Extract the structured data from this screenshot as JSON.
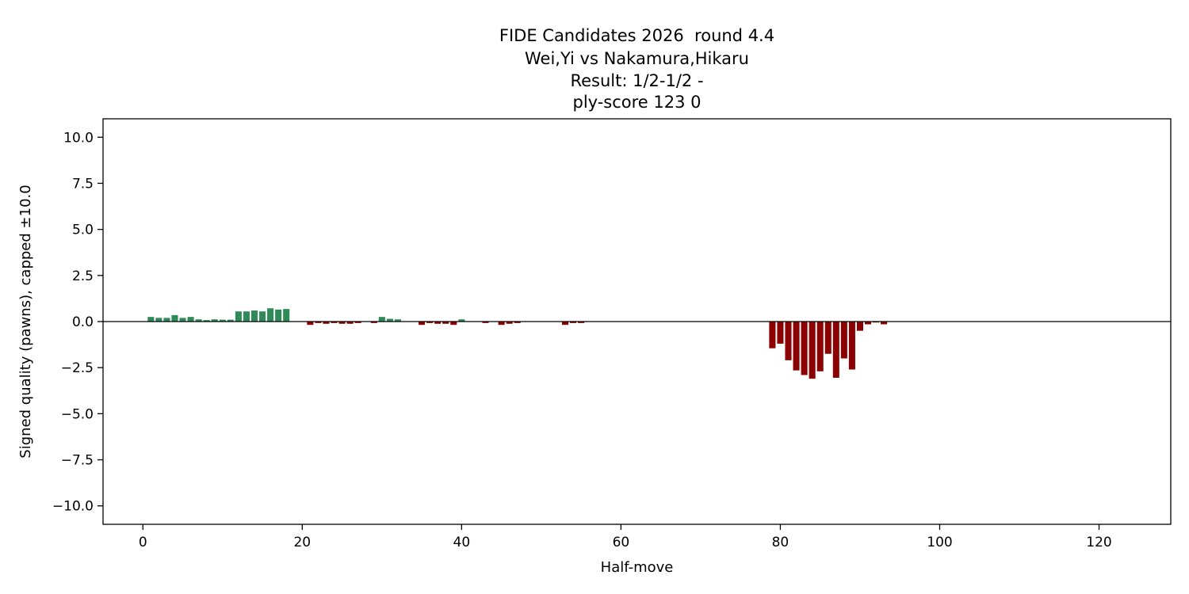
{
  "chart_data": {
    "type": "bar",
    "title_lines": [
      "FIDE Candidates 2026  round 4.4",
      "Wei,Yi vs Nakamura,Hikaru",
      "Result: 1/2-1/2 -",
      "ply-score 123 0"
    ],
    "xlabel": "Half-move",
    "ylabel": "Signed quality (pawns), capped ±10.0",
    "xlim": [
      -5,
      129
    ],
    "ylim": [
      -11,
      11
    ],
    "xticks": [
      0,
      20,
      40,
      60,
      80,
      100,
      120
    ],
    "xtick_labels": [
      "0",
      "20",
      "40",
      "60",
      "80",
      "100",
      "120"
    ],
    "yticks": [
      10,
      7.5,
      5,
      2.5,
      0,
      -2.5,
      -5,
      -7.5,
      -10
    ],
    "ytick_labels": [
      "10.0",
      "7.5",
      "5.0",
      "2.5",
      "0.0",
      "−2.5",
      "−5.0",
      "−7.5",
      "−10.0"
    ],
    "grid": false,
    "colors": {
      "positive": "#2e8b57",
      "negative": "#8b0000",
      "zero_line": "#000000",
      "axes": "#000000"
    },
    "x": [
      1,
      2,
      3,
      4,
      5,
      6,
      7,
      8,
      9,
      10,
      11,
      12,
      13,
      14,
      15,
      16,
      17,
      18,
      19,
      20,
      21,
      22,
      23,
      24,
      25,
      26,
      27,
      28,
      29,
      30,
      31,
      32,
      33,
      34,
      35,
      36,
      37,
      38,
      39,
      40,
      41,
      42,
      43,
      44,
      45,
      46,
      47,
      48,
      49,
      50,
      51,
      52,
      53,
      54,
      55,
      56,
      57,
      58,
      59,
      60,
      61,
      62,
      63,
      64,
      65,
      66,
      67,
      68,
      69,
      70,
      71,
      72,
      73,
      74,
      75,
      76,
      77,
      78,
      79,
      80,
      81,
      82,
      83,
      84,
      85,
      86,
      87,
      88,
      89,
      90,
      91,
      92,
      93,
      94,
      95,
      96,
      97,
      98,
      99,
      100,
      101,
      102,
      103,
      104,
      105,
      106,
      107,
      108,
      109,
      110,
      111,
      112,
      113,
      114,
      115,
      116,
      117,
      118,
      119,
      120,
      121,
      122,
      123
    ],
    "values": [
      0.25,
      0.2,
      0.2,
      0.35,
      0.2,
      0.25,
      0.12,
      0.08,
      0.12,
      0.1,
      0.1,
      0.55,
      0.55,
      0.6,
      0.55,
      0.72,
      0.65,
      0.68,
      0.0,
      0.0,
      -0.18,
      -0.08,
      -0.12,
      -0.08,
      -0.12,
      -0.12,
      -0.08,
      -0.02,
      -0.08,
      0.25,
      0.15,
      0.12,
      0.0,
      0.0,
      -0.18,
      -0.08,
      -0.12,
      -0.12,
      -0.18,
      0.12,
      0.0,
      0.0,
      -0.08,
      0.0,
      -0.18,
      -0.12,
      -0.08,
      0.0,
      0.0,
      0.0,
      0.0,
      0.0,
      -0.18,
      -0.08,
      -0.08,
      0.0,
      0.0,
      0.0,
      0.0,
      0.0,
      0.0,
      0.0,
      0.0,
      0.0,
      0.0,
      0.0,
      0.0,
      0.0,
      0.0,
      0.0,
      0.0,
      0.0,
      0.0,
      0.0,
      0.0,
      0.0,
      0.0,
      0.0,
      -1.45,
      -1.2,
      -2.1,
      -2.65,
      -2.9,
      -3.1,
      -2.7,
      -1.75,
      -3.05,
      -2.0,
      -2.6,
      -0.5,
      -0.15,
      -0.05,
      -0.15,
      0.0,
      0.0,
      0.0,
      0.0,
      0.0,
      0.0,
      0.0,
      0.0,
      0.0,
      0.0,
      0.0,
      0.0,
      0.0,
      0.0,
      0.0,
      0.0,
      0.0,
      0.0,
      0.0,
      0.0,
      0.0,
      0.0,
      0.0,
      0.0,
      0.0,
      0.0,
      0.0,
      0.0,
      0.0,
      0.0
    ]
  }
}
